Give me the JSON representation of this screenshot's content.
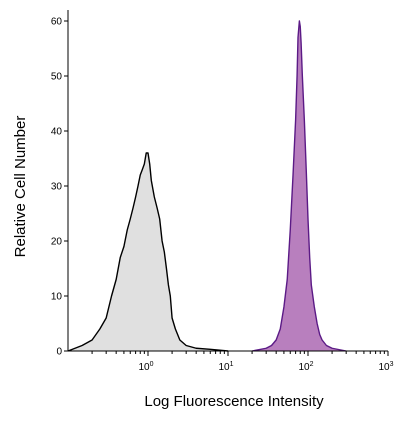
{
  "chart_data": {
    "type": "area",
    "title": "",
    "xlabel": "Log Fluorescence Intensity",
    "ylabel": "Relative Cell Number",
    "x_scale": "log",
    "xlim": [
      0.1,
      1000
    ],
    "ylim": [
      0,
      62
    ],
    "y_ticks": [
      0,
      10,
      20,
      30,
      40,
      50,
      60
    ],
    "x_ticks": [
      {
        "value": 1,
        "base": "10",
        "exp": "0"
      },
      {
        "value": 10,
        "base": "10",
        "exp": "1"
      },
      {
        "value": 100,
        "base": "10",
        "exp": "2"
      },
      {
        "value": 1000,
        "base": "10",
        "exp": "3"
      }
    ],
    "grid": false,
    "legend": "none",
    "series": [
      {
        "role": "control",
        "fill": "#e0e0e0",
        "stroke": "#000000",
        "x": [
          0.1,
          0.15,
          0.2,
          0.25,
          0.3,
          0.35,
          0.4,
          0.45,
          0.5,
          0.55,
          0.6,
          0.65,
          0.7,
          0.75,
          0.8,
          0.85,
          0.9,
          0.95,
          1.0,
          1.05,
          1.1,
          1.2,
          1.3,
          1.4,
          1.5,
          1.6,
          1.7,
          1.8,
          1.9,
          2.0,
          2.2,
          2.5,
          3.0,
          4.0,
          6.0,
          10.0
        ],
        "y": [
          0,
          1,
          2,
          4,
          6,
          10,
          13,
          17,
          19,
          22,
          24,
          26,
          28,
          30,
          32,
          33,
          34,
          36,
          36,
          34,
          31,
          28,
          26,
          24,
          20,
          18,
          15,
          12,
          10,
          6,
          4,
          2,
          1,
          0.5,
          0.3,
          0
        ]
      },
      {
        "role": "stained",
        "fill": "#b87fbe",
        "stroke": "#5b1a86",
        "x": [
          20,
          30,
          35,
          40,
          45,
          50,
          55,
          60,
          65,
          70,
          73,
          75,
          78,
          80,
          82,
          85,
          90,
          95,
          100,
          105,
          110,
          120,
          130,
          140,
          150,
          170,
          200,
          300
        ],
        "y": [
          0,
          0.5,
          1,
          2,
          4,
          8,
          13,
          22,
          32,
          42,
          50,
          57,
          60,
          59,
          56,
          50,
          42,
          33,
          24,
          17,
          12,
          8,
          5,
          3,
          2,
          1,
          0.5,
          0
        ]
      }
    ]
  }
}
